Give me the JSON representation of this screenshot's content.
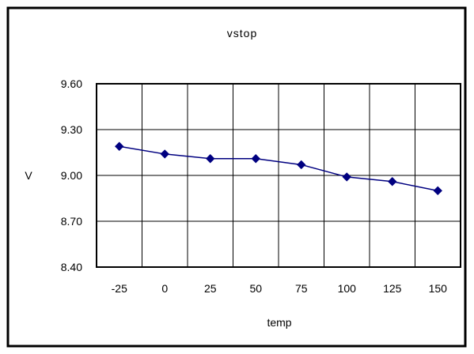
{
  "chart_data": {
    "type": "line",
    "title": "vstop",
    "xlabel": "temp",
    "ylabel": "V",
    "categories": [
      "-25",
      "0",
      "25",
      "50",
      "75",
      "100",
      "125",
      "150"
    ],
    "series": [
      {
        "values": [
          9.19,
          9.14,
          9.11,
          9.11,
          9.07,
          8.99,
          8.96,
          8.9
        ],
        "color": "#000080",
        "marker": "diamond"
      }
    ],
    "ylim": [
      8.4,
      9.6
    ],
    "yticks": [
      9.6,
      9.3,
      9.0,
      8.7,
      8.4
    ],
    "ytick_labels": [
      "9.60",
      "9.30",
      "9.00",
      "8.70",
      "8.40"
    ],
    "grid": true,
    "legend": "none"
  }
}
